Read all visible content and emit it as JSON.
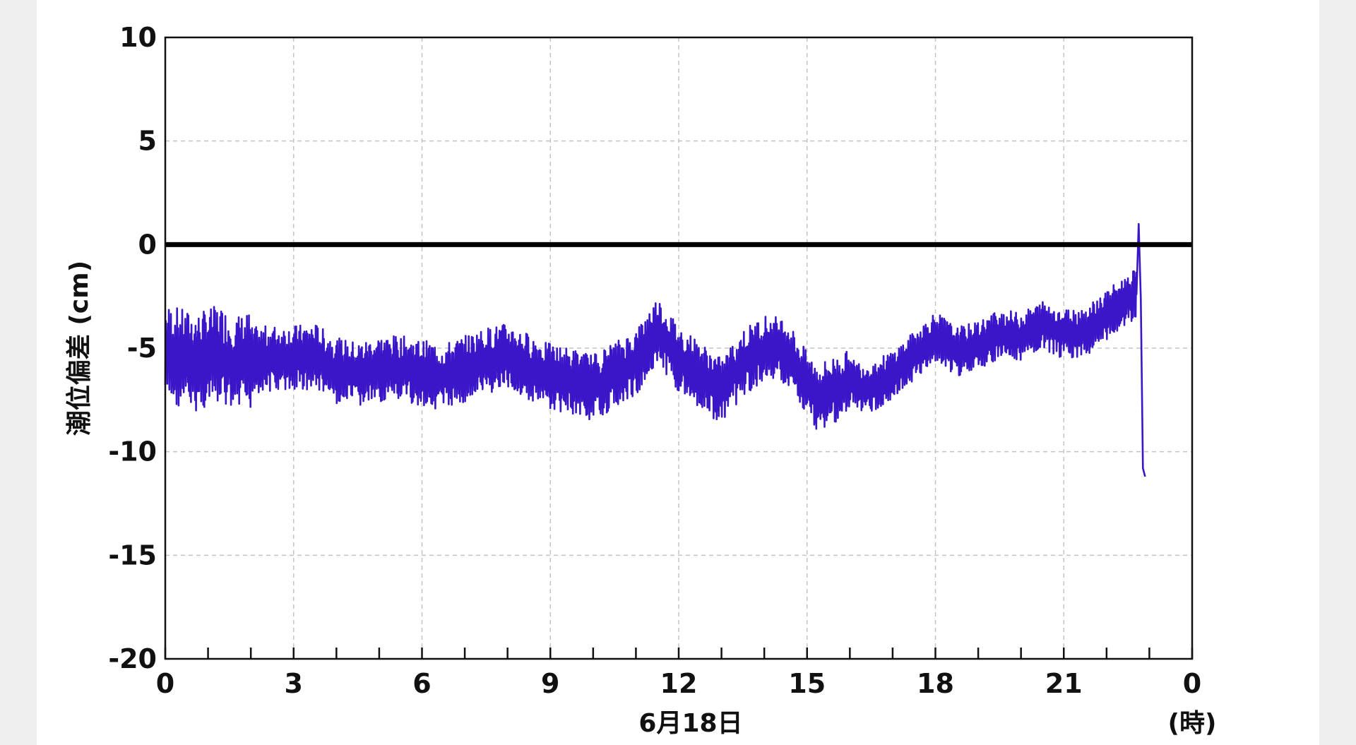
{
  "chart_data": {
    "type": "line",
    "ylabel": "潮位偏差 (cm)",
    "xlabel": "6月18日",
    "x_unit_label": "(時)",
    "ylim": [
      -20,
      10
    ],
    "xlim": [
      0,
      24
    ],
    "y_ticks": [
      "10",
      "5",
      "0",
      "-5",
      "-10",
      "-15",
      "-20"
    ],
    "y_tick_values": [
      10,
      5,
      0,
      -5,
      -10,
      -15,
      -20
    ],
    "x_ticks": [
      "0",
      "3",
      "6",
      "9",
      "12",
      "15",
      "18",
      "21",
      "0"
    ],
    "x_tick_values": [
      0,
      3,
      6,
      9,
      12,
      15,
      18,
      21,
      24
    ],
    "grid": true,
    "reference_line": {
      "y": 0,
      "color": "#000000"
    },
    "series": [
      {
        "color": "#3a16c8",
        "x": [
          0,
          0.25,
          0.5,
          0.75,
          1,
          1.25,
          1.5,
          1.75,
          2,
          2.5,
          3,
          3.5,
          4,
          4.5,
          5,
          5.5,
          6,
          6.5,
          7,
          7.5,
          8,
          8.5,
          9,
          9.5,
          10,
          10.5,
          11,
          11.5,
          12,
          12.5,
          13,
          13.5,
          14,
          14.5,
          15,
          15.25,
          15.5,
          16,
          16.5,
          17,
          17.5,
          18,
          18.5,
          19,
          19.5,
          20,
          20.5,
          21,
          21.5,
          22,
          22.5,
          22.7,
          22.75,
          22.8,
          22.85,
          22.9
        ],
        "values": [
          -5.3,
          -5.4,
          -5.6,
          -5.7,
          -5.5,
          -5.3,
          -5.7,
          -5.8,
          -5.6,
          -5.5,
          -5.5,
          -5.4,
          -6.1,
          -6.3,
          -6.0,
          -6.0,
          -6.2,
          -6.4,
          -6.0,
          -5.6,
          -5.4,
          -5.9,
          -6.4,
          -6.6,
          -6.9,
          -6.3,
          -5.7,
          -4.1,
          -5.5,
          -6.3,
          -7.1,
          -5.7,
          -5.0,
          -5.1,
          -6.8,
          -7.4,
          -7.1,
          -6.7,
          -6.9,
          -6.3,
          -5.4,
          -4.4,
          -5.2,
          -4.9,
          -4.3,
          -4.5,
          -3.9,
          -4.3,
          -4.2,
          -3.4,
          -2.6,
          -2.4,
          1.0,
          -2.6,
          -10.8,
          -11.2
        ],
        "noise_amplitude": 1.6
      }
    ]
  }
}
